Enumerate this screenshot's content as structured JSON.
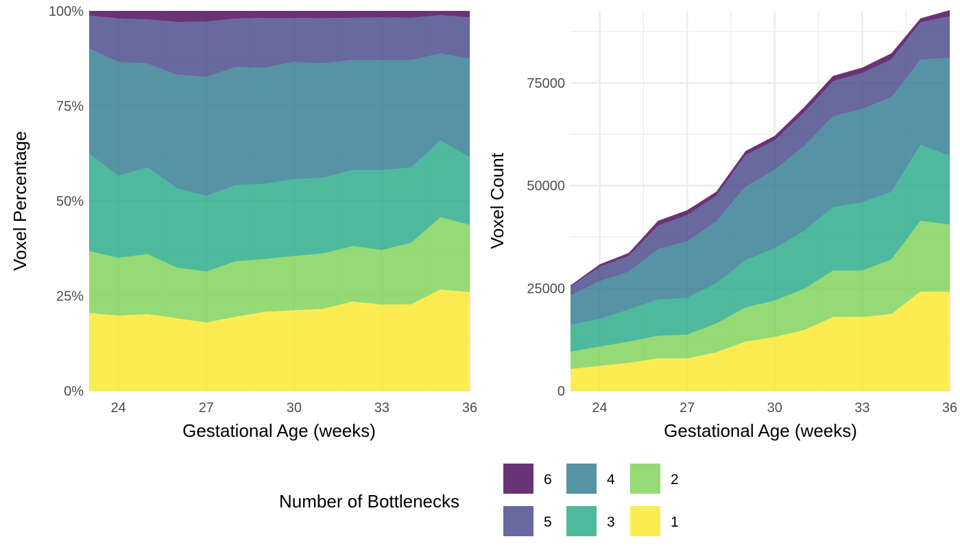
{
  "chart_data": [
    {
      "id": "pct",
      "type": "area",
      "stacked": true,
      "xlabel": "Gestational Age (weeks)",
      "ylabel": "Voxel Percentage",
      "xlim": [
        23,
        36
      ],
      "ylim": [
        0,
        100
      ],
      "x_ticks": [
        24,
        27,
        30,
        33,
        36
      ],
      "y_ticks": [
        0,
        25,
        50,
        75,
        100
      ],
      "y_tick_labels": [
        "0%",
        "25%",
        "50%",
        "75%",
        "100%"
      ],
      "grid": true,
      "x": [
        23,
        24,
        25,
        26,
        27,
        28,
        29,
        30,
        31,
        32,
        33,
        34,
        35,
        36
      ],
      "series": [
        {
          "name": "1",
          "values": [
            20.5,
            19.8,
            20.2,
            19.1,
            18.0,
            19.5,
            20.8,
            21.2,
            21.6,
            23.5,
            22.7,
            22.8,
            26.7,
            26.0
          ]
        },
        {
          "name": "2",
          "values": [
            16.3,
            15.2,
            15.8,
            13.3,
            13.4,
            14.6,
            13.9,
            14.3,
            14.6,
            14.6,
            14.4,
            16.2,
            19.0,
            17.7
          ]
        },
        {
          "name": "3",
          "values": [
            25.6,
            21.6,
            22.8,
            20.9,
            19.9,
            20.0,
            19.8,
            20.2,
            19.9,
            20.0,
            21.0,
            19.8,
            20.2,
            17.8
          ]
        },
        {
          "name": "4",
          "values": [
            27.7,
            30.0,
            27.3,
            29.9,
            31.3,
            31.1,
            30.5,
            30.9,
            30.1,
            29.0,
            29.0,
            28.3,
            22.9,
            25.9
          ]
        },
        {
          "name": "5",
          "values": [
            8.7,
            11.4,
            11.7,
            13.9,
            14.6,
            12.8,
            13.2,
            11.6,
            11.9,
            11.1,
            11.2,
            11.1,
            10.1,
            10.9
          ]
        },
        {
          "name": "6",
          "values": [
            1.2,
            2.0,
            2.2,
            2.9,
            2.8,
            2.0,
            1.8,
            1.8,
            1.9,
            1.8,
            1.7,
            1.8,
            1.1,
            1.7
          ]
        }
      ]
    },
    {
      "id": "count",
      "type": "area",
      "stacked": true,
      "xlabel": "Gestational Age (weeks)",
      "ylabel": "Voxel Count",
      "xlim": [
        23,
        36
      ],
      "ylim": [
        0,
        92500
      ],
      "x_ticks": [
        24,
        27,
        30,
        33,
        36
      ],
      "y_ticks": [
        0,
        25000,
        50000,
        75000
      ],
      "y_tick_labels": [
        "0",
        "25000",
        "50000",
        "75000"
      ],
      "grid": true,
      "x": [
        23,
        24,
        25,
        26,
        27,
        28,
        29,
        30,
        31,
        32,
        33,
        34,
        35,
        36
      ],
      "series": [
        {
          "name": "1",
          "values": [
            5300,
            6100,
            6800,
            7900,
            7900,
            9400,
            12000,
            13100,
            14800,
            18000,
            18000,
            18700,
            24200,
            24100
          ]
        },
        {
          "name": "2",
          "values": [
            4200,
            4700,
            5200,
            5500,
            5800,
            7000,
            8300,
            8900,
            10000,
            11300,
            11300,
            13300,
            17200,
            16400
          ]
        },
        {
          "name": "3",
          "values": [
            6600,
            6700,
            7800,
            8800,
            8900,
            9800,
            11500,
            12700,
            14100,
            15400,
            16600,
            16400,
            18500,
            16700
          ]
        },
        {
          "name": "4",
          "values": [
            7100,
            9200,
            9200,
            12300,
            13800,
            15100,
            17900,
            19100,
            20600,
            22100,
            22700,
            23100,
            20700,
            23900
          ]
        },
        {
          "name": "5",
          "values": [
            2200,
            3500,
            3900,
            5700,
            6400,
            6200,
            7700,
            7200,
            8200,
            8600,
            8800,
            9200,
            9100,
            10100
          ]
        },
        {
          "name": "6",
          "values": [
            300,
            600,
            700,
            1200,
            1200,
            1000,
            1000,
            1100,
            1300,
            1300,
            1300,
            1500,
            1000,
            1500
          ]
        }
      ]
    }
  ],
  "legend": {
    "title": "Number of Bottlenecks",
    "rows": [
      [
        "6",
        "4",
        "2"
      ],
      [
        "5",
        "3",
        "1"
      ]
    ]
  },
  "colors": {
    "1": "#FDE725",
    "2": "#7AD151",
    "3": "#22A884",
    "4": "#2A788E",
    "5": "#414487",
    "6": "#440154"
  },
  "fill_opacity": 0.8,
  "grid_color": "#ebebeb"
}
